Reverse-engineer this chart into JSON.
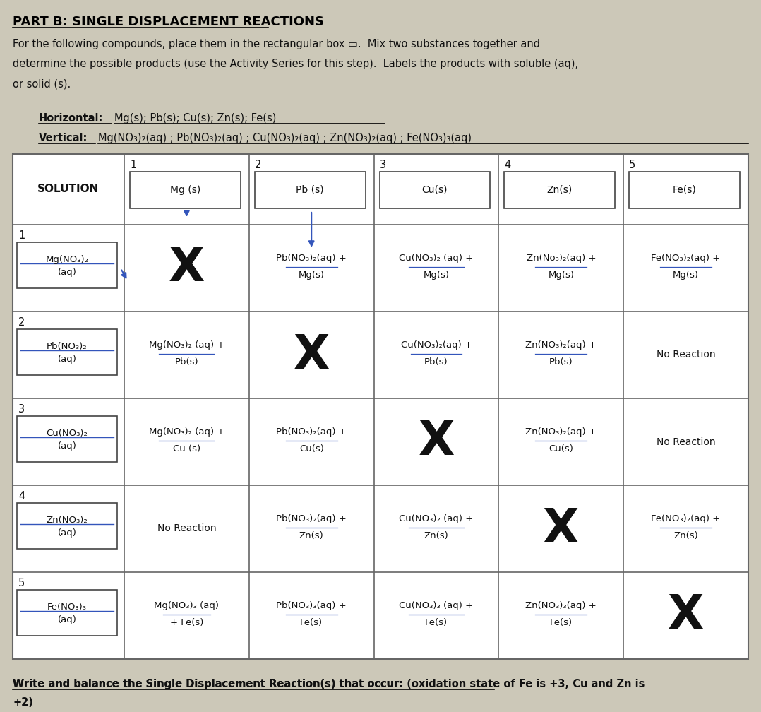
{
  "title": "PART B: SINGLE DISPLACEMENT REACTIONS",
  "bg_color": "#ccc8b8",
  "intro_lines": [
    "For the following compounds, place them in the rectangular box ▭.  Mix two substances together and",
    "determine the possible products (use the Activity Series for this step).  Labels the products with soluble (aq),",
    "or solid (s)."
  ],
  "horiz_label": "Horizontal:",
  "horiz_items": "Mg(s); Pb(s); Cu(s); Zn(s); Fe(s)",
  "vert_label": "Vertical:",
  "vert_items": "Mg(NO₃)₂(aq) ; Pb(NO₃)₂(aq) ; Cu(NO₃)₂(aq) ; Zn(NO₃)₂(aq) ; Fe(NO₃)₃(aq)",
  "col_nums": [
    "1",
    "2",
    "3",
    "4",
    "5"
  ],
  "col_substances": [
    "Mg (s)",
    "Pb (s)",
    "Cu(s)",
    "Zn(s)",
    "Fe(s)"
  ],
  "row_nums": [
    "1",
    "2",
    "3",
    "4",
    "5"
  ],
  "row_substances": [
    "Mg(NO₃)₂\n(aq)",
    "Pb(NO₃)₂\n(aq)",
    "Cu(NO₃)₂\n(aq)",
    "Zn(NO₃)₂\n(aq)",
    "Fe(NO₃)₃\n(aq)"
  ],
  "cells": [
    [
      "X",
      "Pb(NO₃)₂(aq) +\nMg(s)",
      "Cu(NO₃)₂ (aq) +\nMg(s)",
      "Zn(No₃)₂(aq) +\nMg(s)",
      "Fe(NO₃)₂(aq) +\nMg(s)"
    ],
    [
      "Mg(NO₃)₂ (aq) +\nPb(s)",
      "X",
      "Cu(NO₃)₂(aq) +\nPb(s)",
      "Zn(NO₃)₂(aq) +\nPb(s)",
      "No Reaction"
    ],
    [
      "Mg(NO₃)₂ (aq) +\nCu (s)",
      "Pb(NO₃)₂(aq) +\nCu(s)",
      "X",
      "Zn(NO₃)₂(aq) +\nCu(s)",
      "No Reaction"
    ],
    [
      "No Reaction",
      "Pb(NO₃)₂(aq) +\nZn(s)",
      "Cu(NO₃)₂ (aq) +\nZn(s)",
      "X",
      "Fe(NO₃)₂(aq) +\nZn(s)"
    ],
    [
      "Mg(NO₃)₃ (aq)\n+ Fe(s)",
      "Pb(NO₃)₃(aq) +\nFe(s)",
      "Cu(NO₃)₃ (aq) +\nFe(s)",
      "Zn(NO₃)₃(aq) +\nFe(s)",
      "X"
    ]
  ],
  "footer_main": "Write and balance the Single Displacement Reaction(s) that occur:",
  "footer_paren": " (oxidation state of Fe is +3, Cu and Zn is",
  "footer_line2": "+2)",
  "underline_color": "#3355bb",
  "arrow_color": "#3355bb",
  "border_color": "#666666",
  "text_color": "#111111"
}
